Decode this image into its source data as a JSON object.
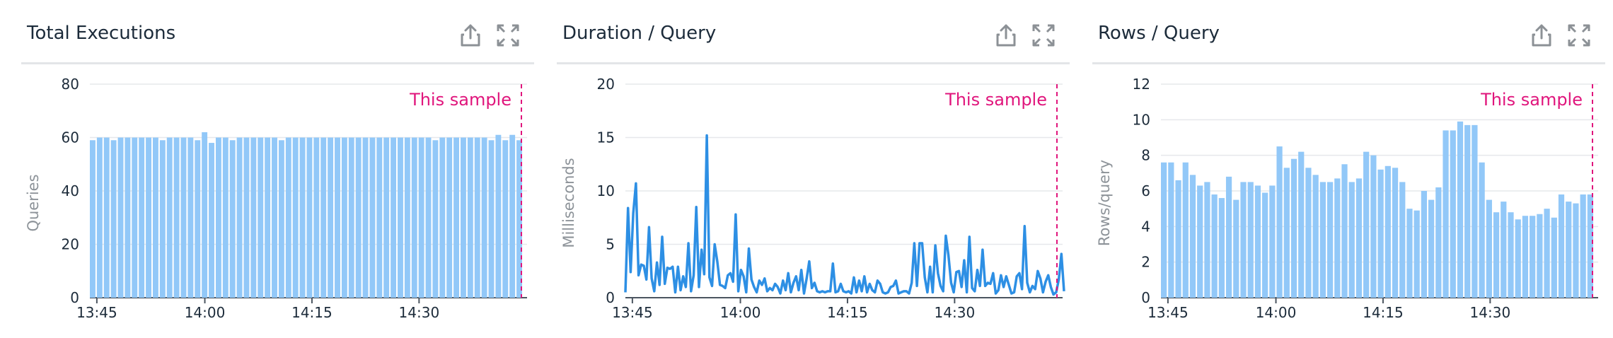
{
  "panels": [
    {
      "title": "Total Executions",
      "export_icon": "share-export-icon",
      "expand_icon": "expand-icon",
      "chart_data": {
        "type": "bar",
        "title": "Total Executions",
        "ylabel": "Queries",
        "ylim": [
          0,
          80
        ],
        "yticks": [
          0,
          20,
          40,
          60,
          80
        ],
        "xticks": [
          "13:45",
          "14:00",
          "14:15",
          "14:30"
        ],
        "annotation": "This sample",
        "grid": true,
        "color": "#92c8f8",
        "values": [
          59,
          60,
          60,
          59,
          60,
          60,
          60,
          60,
          60,
          60,
          59,
          60,
          60,
          60,
          60,
          59,
          62,
          58,
          60,
          60,
          59,
          60,
          60,
          60,
          60,
          60,
          60,
          59,
          60,
          60,
          60,
          60,
          60,
          60,
          60,
          60,
          60,
          60,
          60,
          60,
          60,
          60,
          60,
          60,
          60,
          60,
          60,
          60,
          60,
          59,
          60,
          60,
          60,
          60,
          60,
          60,
          60,
          59,
          61,
          59,
          61,
          59
        ]
      }
    },
    {
      "title": "Duration / Query",
      "export_icon": "share-export-icon",
      "expand_icon": "expand-icon",
      "chart_data": {
        "type": "line",
        "title": "Duration / Query",
        "ylabel": "Milliseconds",
        "ylim": [
          0,
          20
        ],
        "yticks": [
          0,
          5,
          10,
          15,
          20
        ],
        "xticks": [
          "13:45",
          "14:00",
          "14:15",
          "14:30"
        ],
        "annotation": "This sample",
        "grid": true,
        "color": "#2d8fe4",
        "values": [
          0.5,
          8.4,
          2.4,
          7.9,
          10.7,
          2.1,
          3.1,
          3.0,
          1.7,
          6.6,
          1.8,
          0.6,
          3.3,
          1.2,
          5.7,
          1.3,
          2.8,
          2.7,
          2.9,
          0.5,
          2.9,
          0.7,
          2.0,
          1.0,
          5.1,
          0.6,
          2.1,
          8.5,
          1.0,
          4.5,
          2.2,
          15.2,
          1.9,
          1.1,
          5.0,
          3.4,
          1.2,
          1.1,
          0.9,
          2.1,
          2.3,
          1.5,
          7.8,
          0.6,
          2.6,
          2.0,
          0.5,
          4.6,
          1.7,
          1.0,
          0.5,
          1.6,
          1.2,
          1.8,
          0.6,
          0.9,
          0.7,
          1.3,
          1.0,
          0.4,
          1.6,
          0.7,
          2.3,
          0.5,
          1.4,
          2.0,
          0.7,
          2.6,
          0.4,
          1.8,
          3.4,
          0.9,
          1.4,
          0.6,
          0.5,
          0.6,
          0.5,
          0.6,
          0.6,
          3.2,
          0.5,
          0.6,
          1.3,
          0.6,
          0.5,
          0.6,
          0.4,
          1.9,
          0.5,
          1.6,
          0.6,
          2.0,
          0.5,
          1.3,
          0.7,
          0.5,
          1.6,
          1.3,
          0.5,
          0.4,
          0.5,
          1.0,
          1.1,
          1.6,
          0.4,
          0.5,
          0.6,
          0.6,
          0.4,
          1.4,
          5.1,
          1.1,
          5.1,
          5.1,
          1.9,
          0.5,
          2.9,
          0.5,
          4.9,
          2.3,
          1.1,
          0.6,
          5.8,
          4.0,
          1.4,
          0.5,
          2.4,
          2.5,
          1.0,
          3.5,
          0.5,
          5.7,
          0.9,
          0.6,
          2.6,
          1.1,
          4.5,
          1.1,
          1.4,
          1.3,
          2.3,
          0.4,
          0.7,
          2.1,
          1.0,
          2.0,
          1.2,
          0.4,
          0.5,
          2.0,
          2.3,
          0.8,
          6.7,
          1.4,
          0.5,
          1.1,
          0.8,
          2.5,
          1.8,
          0.5,
          1.5,
          2.1,
          1.0,
          0.3,
          0.5,
          1.7,
          4.1,
          0.6
        ]
      }
    },
    {
      "title": "Rows / Query",
      "export_icon": "share-export-icon",
      "expand_icon": "expand-icon",
      "chart_data": {
        "type": "bar",
        "title": "Rows / Query",
        "ylabel": "Rows/query",
        "ylim": [
          0,
          12
        ],
        "yticks": [
          0,
          2,
          4,
          6,
          8,
          10,
          12
        ],
        "xticks": [
          "13:45",
          "14:00",
          "14:15",
          "14:30"
        ],
        "annotation": "This sample",
        "grid": true,
        "color": "#92c8f8",
        "values": [
          7.6,
          7.6,
          6.6,
          7.6,
          6.9,
          6.3,
          6.5,
          5.8,
          5.6,
          6.8,
          5.5,
          6.5,
          6.5,
          6.3,
          5.9,
          6.3,
          8.5,
          7.3,
          7.8,
          8.2,
          7.3,
          6.9,
          6.5,
          6.5,
          6.7,
          7.5,
          6.5,
          6.7,
          8.2,
          8.0,
          7.2,
          7.4,
          7.3,
          6.5,
          5.0,
          4.9,
          6.0,
          5.5,
          6.2,
          9.4,
          9.4,
          9.9,
          9.7,
          9.7,
          7.6,
          5.5,
          4.8,
          5.4,
          4.8,
          4.4,
          4.6,
          4.6,
          4.7,
          5.0,
          4.5,
          5.8,
          5.4,
          5.3,
          5.8,
          5.8
        ]
      }
    }
  ]
}
